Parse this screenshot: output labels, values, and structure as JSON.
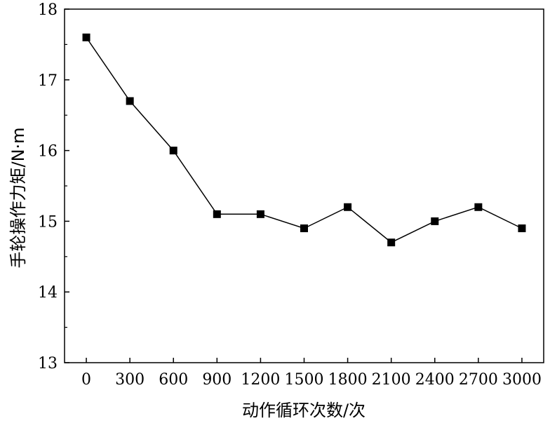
{
  "chart_data": {
    "type": "line",
    "x": [
      0,
      300,
      600,
      900,
      1200,
      1500,
      1800,
      2100,
      2400,
      2700,
      3000
    ],
    "x_tick_labels": [
      "0",
      "300",
      "600",
      "900",
      "1200",
      "1500",
      "1800",
      "2100",
      "2400",
      "2700",
      "3000"
    ],
    "series": [
      {
        "values": [
          17.6,
          16.7,
          16.0,
          15.1,
          15.1,
          14.9,
          15.2,
          14.7,
          15.0,
          15.2,
          14.9
        ],
        "marker": "square",
        "color": "#000000"
      }
    ],
    "y_tick_labels": [
      "13",
      "14",
      "15",
      "16",
      "17",
      "18"
    ],
    "ylim": [
      13,
      18
    ],
    "xlim": [
      -150,
      3150
    ],
    "xlabel": "动作循环次数/次",
    "ylabel": "手轮操作力矩/N·m",
    "grid": false,
    "legend": "none"
  }
}
